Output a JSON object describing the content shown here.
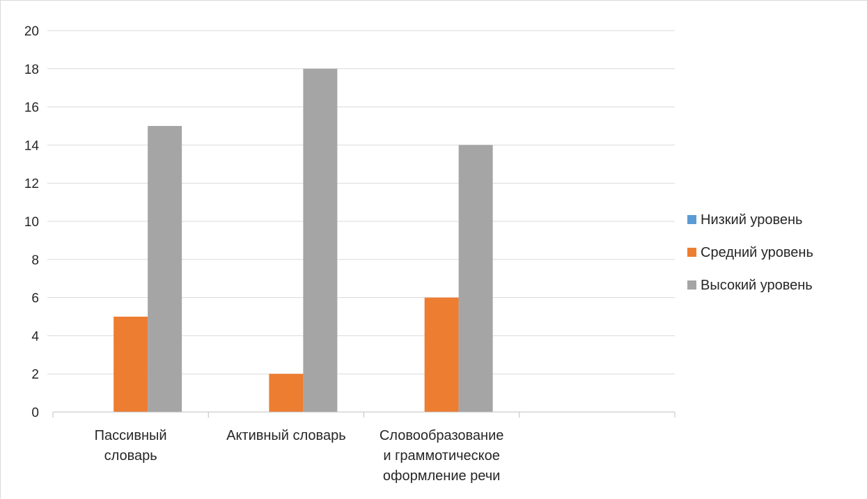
{
  "chart_data": {
    "type": "bar",
    "title": "",
    "xlabel": "",
    "ylabel": "",
    "categories": [
      [
        "Пассивный",
        "словарь"
      ],
      [
        "Активный словарь"
      ],
      [
        "Словообразование",
        "и граммотическое",
        "оформление речи"
      ],
      [
        ""
      ]
    ],
    "series": [
      {
        "name": "Низкий уровень",
        "color": "#5b9bd5",
        "values": [
          0,
          0,
          0,
          0
        ]
      },
      {
        "name": "Средний уровень",
        "color": "#ed7d31",
        "values": [
          5,
          2,
          6,
          0
        ]
      },
      {
        "name": "Высокий уровень",
        "color": "#a5a5a5",
        "values": [
          15,
          18,
          14,
          0
        ]
      }
    ],
    "ylim": [
      0,
      20
    ],
    "yticks": [
      0,
      2,
      4,
      6,
      8,
      10,
      12,
      14,
      16,
      18,
      20
    ],
    "grid": true,
    "legend_position": "right",
    "colors": {
      "grid": "#d9d9d9",
      "axis": "#bfbfbf",
      "text": "#262626"
    }
  }
}
